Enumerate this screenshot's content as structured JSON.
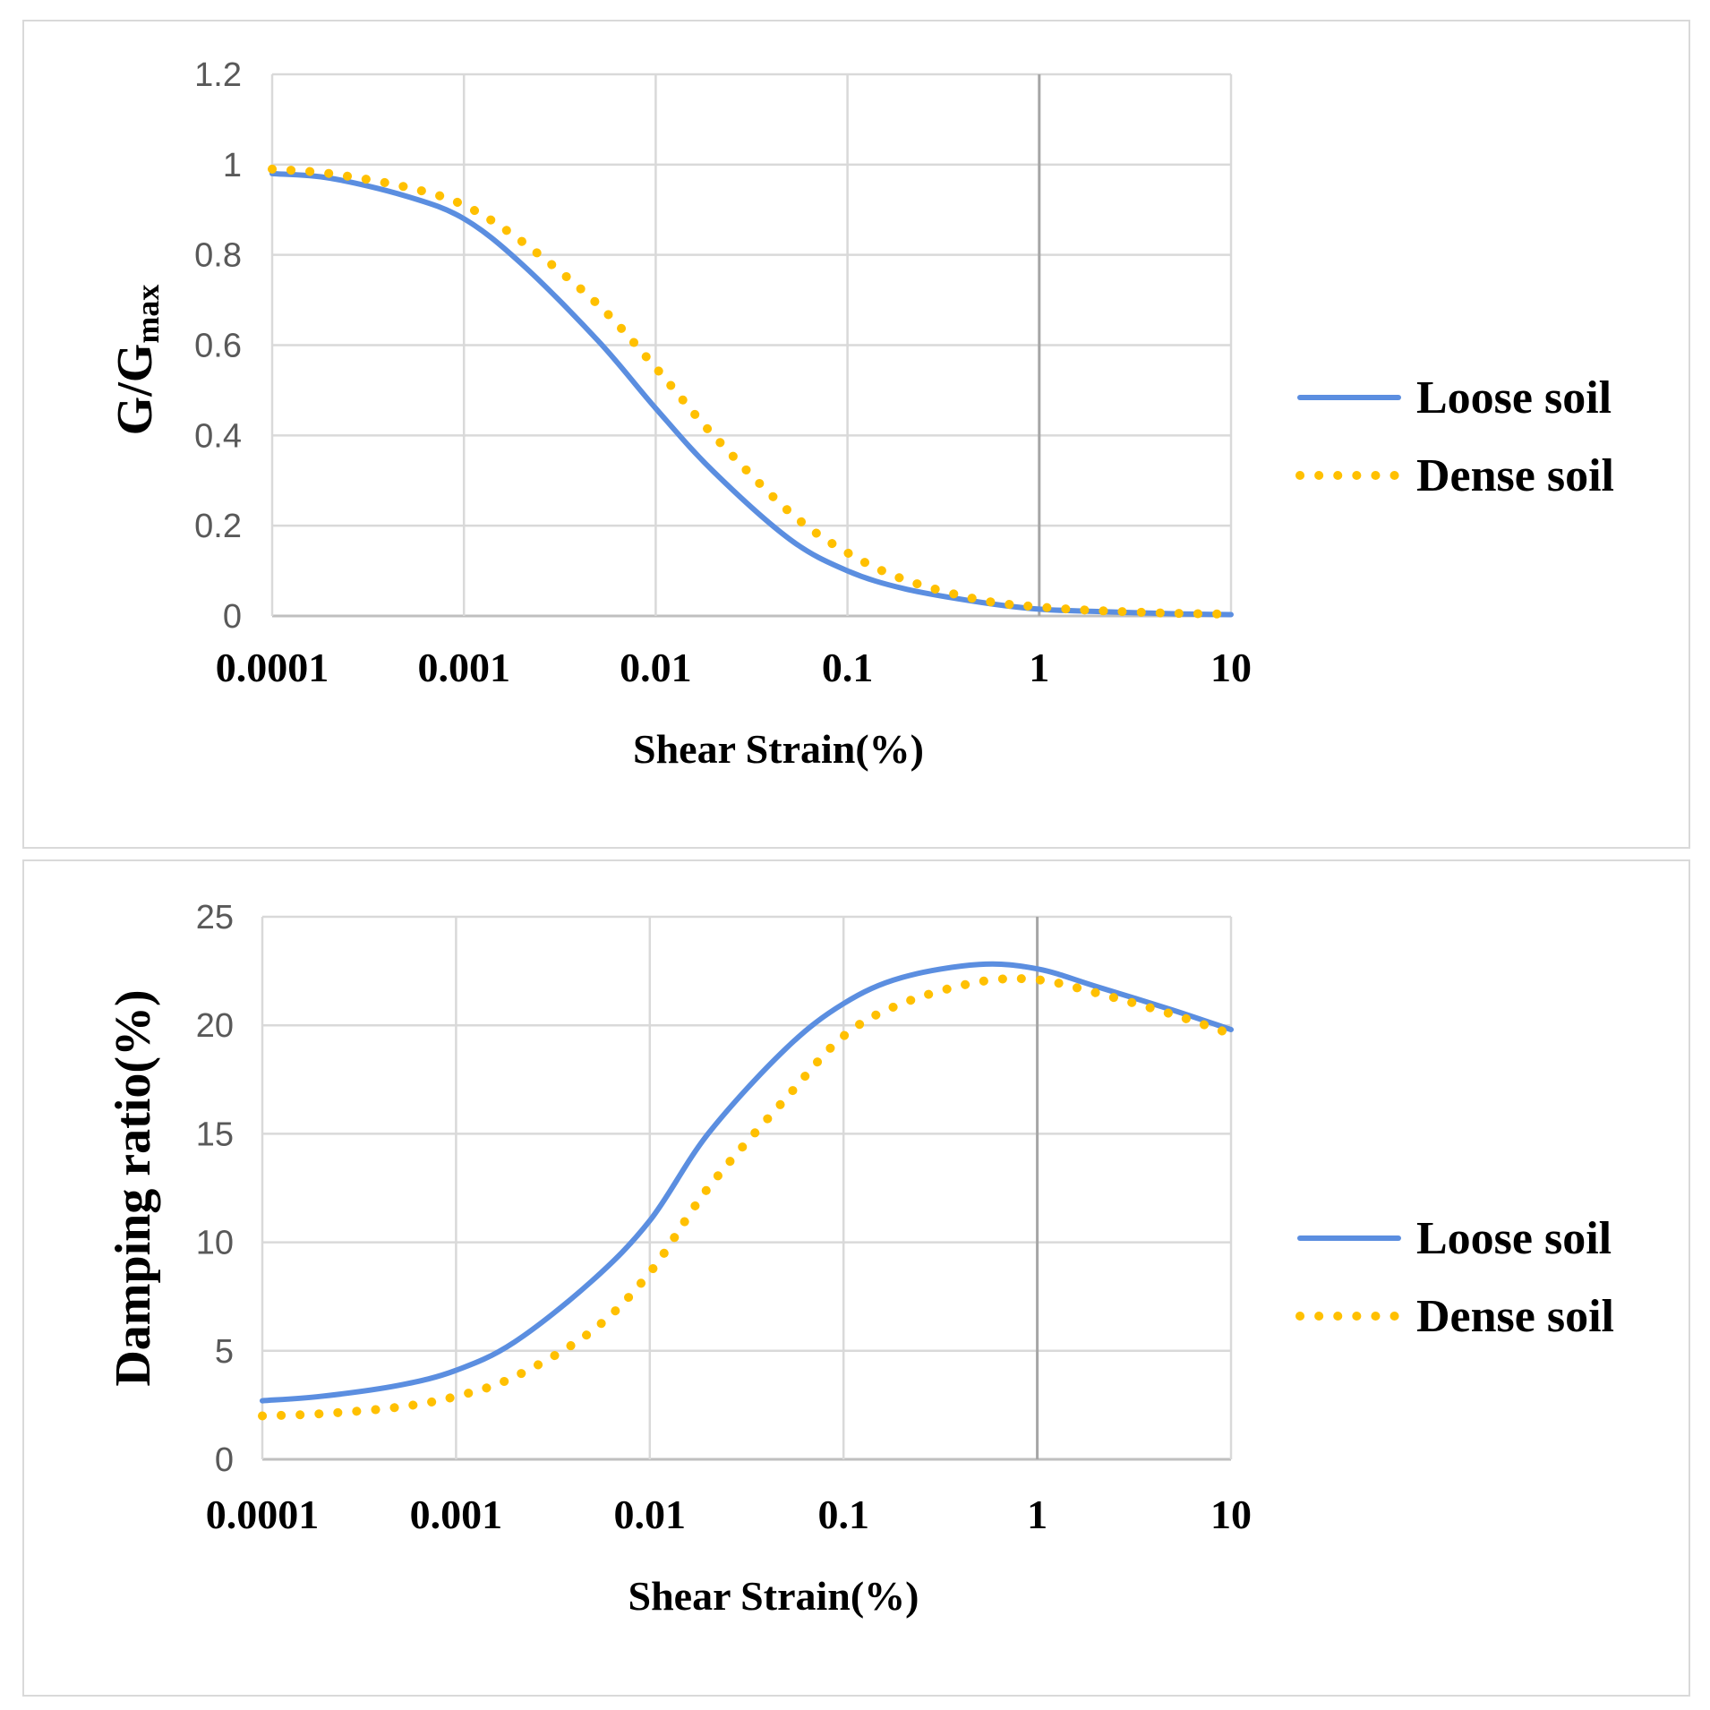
{
  "chart_data": [
    {
      "type": "line",
      "title": "",
      "xlabel": "Shear Strain(%)",
      "ylabel_main": "G/G",
      "ylabel_sub": "max",
      "xscale": "log",
      "xlim": [
        0.0001,
        10
      ],
      "ylim": [
        0,
        1.2
      ],
      "x_ticks": [
        "0.0001",
        "0.001",
        "0.01",
        "0.1",
        "1",
        "10"
      ],
      "y_ticks": [
        "0",
        "0.2",
        "0.4",
        "0.6",
        "0.8",
        "1",
        "1.2"
      ],
      "grid": true,
      "legend": "right",
      "series": [
        {
          "name": "Loose soil",
          "color": "#5b8ee0",
          "style": "solid",
          "x": [
            0.0001,
            0.0002,
            0.0005,
            0.001,
            0.002,
            0.005,
            0.01,
            0.02,
            0.05,
            0.1,
            0.2,
            0.5,
            1,
            2,
            5,
            10
          ],
          "y": [
            0.98,
            0.97,
            0.93,
            0.88,
            0.78,
            0.61,
            0.46,
            0.32,
            0.17,
            0.1,
            0.06,
            0.03,
            0.015,
            0.01,
            0.005,
            0.003
          ]
        },
        {
          "name": "Dense soil",
          "color": "#ffc000",
          "style": "dotted",
          "x": [
            0.0001,
            0.0002,
            0.0005,
            0.001,
            0.002,
            0.005,
            0.01,
            0.02,
            0.05,
            0.1,
            0.2,
            0.5,
            1,
            2,
            5,
            10
          ],
          "y": [
            0.99,
            0.98,
            0.95,
            0.91,
            0.83,
            0.69,
            0.55,
            0.4,
            0.23,
            0.14,
            0.08,
            0.035,
            0.02,
            0.012,
            0.006,
            0.004
          ]
        }
      ]
    },
    {
      "type": "line",
      "title": "",
      "xlabel": "Shear Strain(%)",
      "ylabel": "Damping ratio(%)",
      "xscale": "log",
      "xlim": [
        0.0001,
        10
      ],
      "ylim": [
        0,
        25
      ],
      "x_ticks": [
        "0.0001",
        "0.001",
        "0.01",
        "0.1",
        "1",
        "10"
      ],
      "y_ticks": [
        "0",
        "5",
        "10",
        "15",
        "20",
        "25"
      ],
      "grid": true,
      "legend": "right",
      "series": [
        {
          "name": "Loose soil",
          "color": "#5b8ee0",
          "style": "solid",
          "x": [
            0.0001,
            0.0002,
            0.0005,
            0.001,
            0.002,
            0.005,
            0.01,
            0.02,
            0.05,
            0.1,
            0.2,
            0.5,
            1,
            2,
            5,
            10
          ],
          "y": [
            2.7,
            2.9,
            3.4,
            4.1,
            5.4,
            8.2,
            11.0,
            15.0,
            18.9,
            21.0,
            22.2,
            22.8,
            22.6,
            21.8,
            20.7,
            19.8
          ]
        },
        {
          "name": "Dense soil",
          "color": "#ffc000",
          "style": "dotted",
          "x": [
            0.0001,
            0.0002,
            0.0005,
            0.001,
            0.002,
            0.005,
            0.01,
            0.02,
            0.05,
            0.1,
            0.2,
            0.5,
            1,
            2,
            5,
            10
          ],
          "y": [
            2.0,
            2.1,
            2.4,
            2.9,
            3.8,
            5.9,
            8.6,
            12.5,
            16.6,
            19.5,
            21.0,
            22.0,
            22.1,
            21.5,
            20.5,
            19.6
          ]
        }
      ]
    }
  ]
}
